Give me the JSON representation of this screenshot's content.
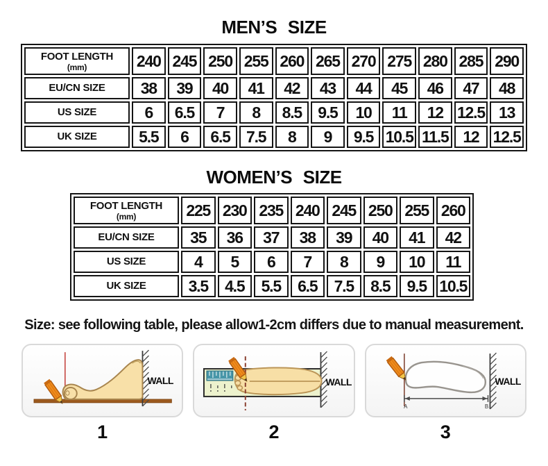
{
  "page": {
    "background": "#ffffff"
  },
  "mens_section": {
    "title": "MEN’S SIZE",
    "table": {
      "rows": [
        {
          "label": "FOOT LENGTH",
          "sublabel": "(mm)",
          "values": [
            "240",
            "245",
            "250",
            "255",
            "260",
            "265",
            "270",
            "275",
            "280",
            "285",
            "290"
          ]
        },
        {
          "label": "EU/CN SIZE",
          "values": [
            "38",
            "39",
            "40",
            "41",
            "42",
            "43",
            "44",
            "45",
            "46",
            "47",
            "48"
          ]
        },
        {
          "label": "US SIZE",
          "values": [
            "6",
            "6.5",
            "7",
            "8",
            "8.5",
            "9.5",
            "10",
            "11",
            "12",
            "12.5",
            "13"
          ]
        },
        {
          "label": "UK SIZE",
          "values": [
            "5.5",
            "6",
            "6.5",
            "7.5",
            "8",
            "9",
            "9.5",
            "10.5",
            "11.5",
            "12",
            "12.5"
          ]
        }
      ]
    }
  },
  "womens_section": {
    "title": "WOMEN’S SIZE",
    "table": {
      "rows": [
        {
          "label": "FOOT LENGTH",
          "sublabel": "(mm)",
          "values": [
            "225",
            "230",
            "235",
            "240",
            "245",
            "250",
            "255",
            "260"
          ]
        },
        {
          "label": "EU/CN SIZE",
          "values": [
            "35",
            "36",
            "37",
            "38",
            "39",
            "40",
            "41",
            "42"
          ]
        },
        {
          "label": "US SIZE",
          "values": [
            "4",
            "5",
            "6",
            "7",
            "8",
            "9",
            "10",
            "11"
          ]
        },
        {
          "label": "UK SIZE",
          "values": [
            "3.5",
            "4.5",
            "5.5",
            "6.5",
            "7.5",
            "8.5",
            "9.5",
            "10.5"
          ]
        }
      ]
    }
  },
  "note": "Size: see following table, please allow1-2cm differs due to manual measurement.",
  "diagrams": {
    "wall_label": "WALL",
    "point_a_label": "A",
    "point_b_label": "B",
    "steps": [
      {
        "number": "1"
      },
      {
        "number": "2"
      },
      {
        "number": "3"
      }
    ]
  },
  "colors": {
    "table_border": "#141414",
    "pencil_orange": "#ef8b1d",
    "foot_skin": "#f8e0a8",
    "ruler_green": "#edf2cd",
    "ruler_teal": "#4796a8",
    "floor_brown": "#9c5a1e",
    "marker_red": "#c23b36",
    "panel_border": "#d9d9d9"
  },
  "chart_data": [
    {
      "type": "table",
      "title": "MEN'S SIZE",
      "row_headers": [
        "FOOT LENGTH (mm)",
        "EU/CN SIZE",
        "US SIZE",
        "UK SIZE"
      ],
      "rows": [
        [
          240,
          245,
          250,
          255,
          260,
          265,
          270,
          275,
          280,
          285,
          290
        ],
        [
          38,
          39,
          40,
          41,
          42,
          43,
          44,
          45,
          46,
          47,
          48
        ],
        [
          6,
          6.5,
          7,
          8,
          8.5,
          9.5,
          10,
          11,
          12,
          12.5,
          13
        ],
        [
          5.5,
          6,
          6.5,
          7.5,
          8,
          9,
          9.5,
          10.5,
          11.5,
          12,
          12.5
        ]
      ]
    },
    {
      "type": "table",
      "title": "WOMEN'S SIZE",
      "row_headers": [
        "FOOT LENGTH (mm)",
        "EU/CN SIZE",
        "US SIZE",
        "UK SIZE"
      ],
      "rows": [
        [
          225,
          230,
          235,
          240,
          245,
          250,
          255,
          260
        ],
        [
          35,
          36,
          37,
          38,
          39,
          40,
          41,
          42
        ],
        [
          4,
          5,
          6,
          7,
          8,
          9,
          10,
          11
        ],
        [
          3.5,
          4.5,
          5.5,
          6.5,
          7.5,
          8.5,
          9.5,
          10.5
        ]
      ]
    }
  ]
}
